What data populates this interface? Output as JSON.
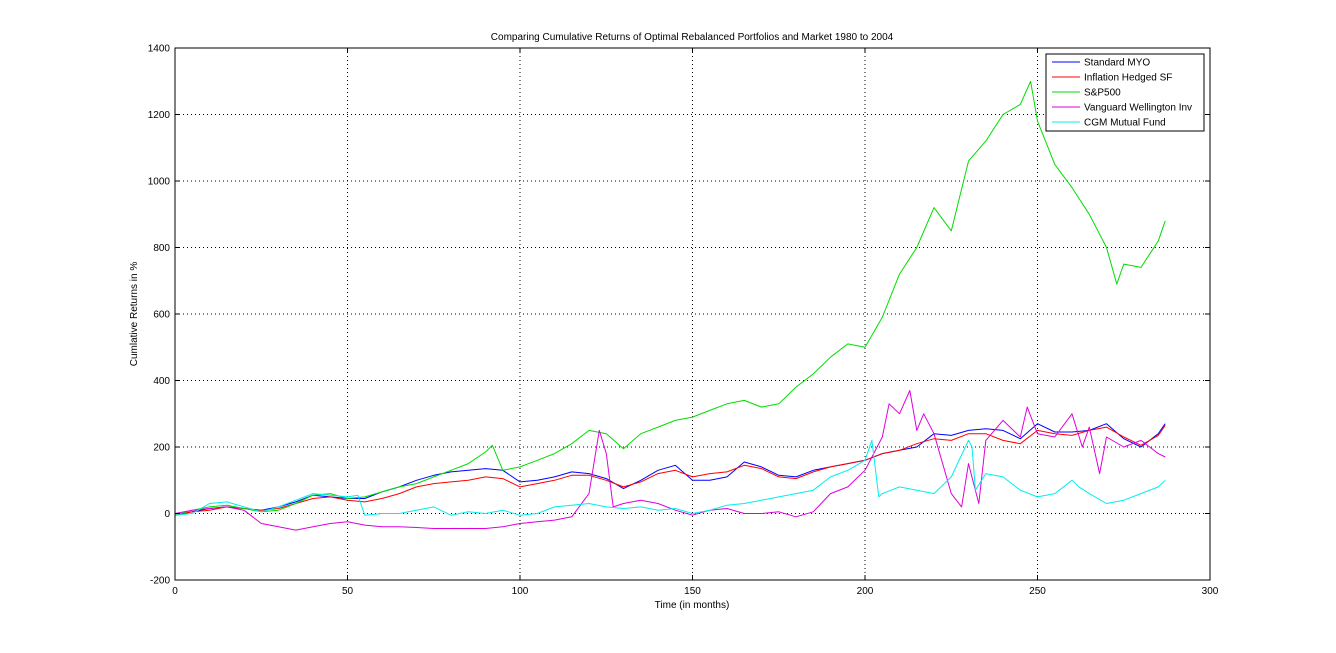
{
  "chart_data": {
    "type": "line",
    "title": "Comparing Cumulative Returns of Optimal Rebalanced Portfolios and Market 1980 to 2004",
    "xlabel": "Time (in months)",
    "ylabel": "Cumlative Returns in %",
    "xlim": [
      0,
      300
    ],
    "ylim": [
      -200,
      1400
    ],
    "xticks": [
      0,
      50,
      100,
      150,
      200,
      250,
      300
    ],
    "yticks": [
      -200,
      0,
      200,
      400,
      600,
      800,
      1000,
      1200,
      1400
    ],
    "grid": true,
    "legend_position": "top-right",
    "series": [
      {
        "name": "Standard MYO",
        "color": "#0000ff",
        "x": [
          0,
          5,
          10,
          15,
          20,
          25,
          30,
          35,
          40,
          45,
          50,
          55,
          60,
          65,
          70,
          75,
          80,
          85,
          90,
          95,
          100,
          105,
          110,
          115,
          120,
          125,
          130,
          135,
          140,
          145,
          150,
          155,
          160,
          165,
          170,
          175,
          180,
          185,
          190,
          195,
          200,
          205,
          210,
          215,
          220,
          225,
          230,
          235,
          240,
          245,
          250,
          255,
          260,
          265,
          270,
          275,
          280,
          285,
          287
        ],
        "y": [
          -5,
          5,
          15,
          20,
          15,
          10,
          20,
          35,
          55,
          50,
          45,
          45,
          65,
          80,
          100,
          115,
          125,
          130,
          135,
          130,
          95,
          100,
          110,
          125,
          120,
          105,
          75,
          100,
          130,
          145,
          100,
          100,
          110,
          155,
          140,
          115,
          110,
          130,
          140,
          150,
          160,
          180,
          190,
          200,
          240,
          235,
          250,
          255,
          250,
          225,
          270,
          245,
          245,
          250,
          270,
          225,
          200,
          240,
          270
        ]
      },
      {
        "name": "Inflation Hedged SF",
        "color": "#ff0000",
        "x": [
          0,
          5,
          10,
          15,
          20,
          25,
          30,
          35,
          40,
          45,
          50,
          55,
          60,
          65,
          70,
          75,
          80,
          85,
          90,
          95,
          100,
          105,
          110,
          115,
          120,
          125,
          130,
          135,
          140,
          145,
          150,
          155,
          160,
          165,
          170,
          175,
          180,
          185,
          190,
          195,
          200,
          205,
          210,
          215,
          220,
          225,
          230,
          235,
          240,
          245,
          250,
          255,
          260,
          265,
          270,
          275,
          280,
          285,
          287
        ],
        "y": [
          -5,
          5,
          10,
          20,
          15,
          10,
          15,
          30,
          45,
          50,
          40,
          35,
          45,
          60,
          80,
          90,
          95,
          100,
          110,
          105,
          80,
          90,
          100,
          115,
          115,
          100,
          80,
          95,
          120,
          130,
          110,
          120,
          125,
          145,
          135,
          110,
          105,
          125,
          140,
          150,
          160,
          180,
          190,
          210,
          225,
          220,
          240,
          240,
          220,
          210,
          250,
          240,
          235,
          250,
          260,
          230,
          205,
          235,
          265
        ]
      },
      {
        "name": "S&P500",
        "color": "#00dd00",
        "x": [
          0,
          5,
          10,
          15,
          20,
          25,
          30,
          35,
          40,
          45,
          50,
          55,
          60,
          65,
          70,
          75,
          80,
          85,
          90,
          92,
          95,
          100,
          105,
          110,
          115,
          120,
          125,
          130,
          135,
          140,
          145,
          150,
          155,
          160,
          165,
          170,
          175,
          180,
          185,
          190,
          195,
          200,
          205,
          210,
          215,
          220,
          225,
          230,
          235,
          240,
          245,
          248,
          250,
          255,
          260,
          265,
          270,
          273,
          275,
          280,
          285,
          287
        ],
        "y": [
          -5,
          10,
          20,
          25,
          15,
          5,
          10,
          30,
          55,
          60,
          45,
          50,
          65,
          80,
          90,
          110,
          130,
          150,
          185,
          205,
          130,
          140,
          160,
          180,
          210,
          250,
          240,
          195,
          240,
          260,
          280,
          290,
          310,
          330,
          340,
          320,
          330,
          380,
          420,
          470,
          510,
          500,
          590,
          720,
          800,
          920,
          850,
          1060,
          1120,
          1200,
          1230,
          1300,
          1180,
          1050,
          980,
          900,
          800,
          690,
          750,
          740,
          820,
          880
        ]
      },
      {
        "name": "Vanguard Wellington Inv",
        "color": "#dd00dd",
        "x": [
          0,
          5,
          10,
          15,
          20,
          25,
          30,
          35,
          40,
          45,
          50,
          55,
          60,
          65,
          70,
          75,
          80,
          85,
          90,
          95,
          100,
          105,
          110,
          115,
          120,
          123,
          125,
          127,
          130,
          135,
          140,
          145,
          150,
          155,
          160,
          165,
          170,
          175,
          180,
          185,
          190,
          195,
          200,
          205,
          207,
          210,
          213,
          215,
          217,
          220,
          225,
          228,
          230,
          233,
          235,
          240,
          245,
          247,
          250,
          255,
          260,
          263,
          265,
          268,
          270,
          275,
          280,
          285,
          287
        ],
        "y": [
          0,
          10,
          15,
          20,
          10,
          -30,
          -40,
          -50,
          -40,
          -30,
          -25,
          -35,
          -40,
          -40,
          -42,
          -45,
          -45,
          -45,
          -45,
          -40,
          -30,
          -25,
          -20,
          -10,
          60,
          250,
          180,
          20,
          30,
          40,
          30,
          10,
          -5,
          10,
          15,
          0,
          0,
          5,
          -10,
          5,
          60,
          80,
          130,
          230,
          330,
          300,
          370,
          250,
          300,
          240,
          60,
          20,
          150,
          30,
          220,
          280,
          230,
          320,
          240,
          230,
          300,
          200,
          260,
          120,
          230,
          200,
          220,
          180,
          170
        ]
      },
      {
        "name": "CGM Mutual Fund",
        "color": "#00eeee",
        "x": [
          0,
          5,
          10,
          15,
          20,
          25,
          30,
          35,
          40,
          45,
          50,
          53,
          55,
          60,
          65,
          70,
          75,
          80,
          85,
          90,
          95,
          100,
          105,
          110,
          115,
          120,
          125,
          130,
          135,
          140,
          145,
          150,
          155,
          160,
          165,
          170,
          175,
          180,
          185,
          190,
          195,
          200,
          202,
          204,
          205,
          210,
          215,
          220,
          225,
          230,
          231,
          232,
          235,
          240,
          245,
          250,
          255,
          260,
          262,
          265,
          270,
          275,
          280,
          285,
          287
        ],
        "y": [
          -5,
          0,
          30,
          35,
          20,
          5,
          20,
          40,
          60,
          55,
          50,
          55,
          -5,
          0,
          0,
          10,
          20,
          -5,
          5,
          0,
          10,
          -5,
          0,
          20,
          25,
          30,
          20,
          15,
          20,
          10,
          15,
          0,
          10,
          25,
          30,
          40,
          50,
          60,
          70,
          110,
          130,
          160,
          220,
          50,
          60,
          80,
          70,
          60,
          110,
          220,
          200,
          70,
          120,
          110,
          70,
          50,
          60,
          100,
          80,
          60,
          30,
          40,
          60,
          80,
          100
        ]
      }
    ]
  }
}
